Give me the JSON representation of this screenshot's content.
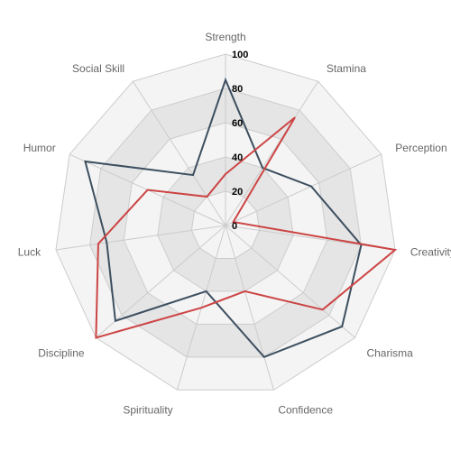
{
  "chart_data": {
    "type": "radar",
    "axes": [
      "Strength",
      "Stamina",
      "Perception",
      "Creativity",
      "Charisma",
      "Confidence",
      "Spirituality",
      "Discipline",
      "Luck",
      "Humor",
      "Social Skill"
    ],
    "r_ticks": [
      "0",
      "20",
      "40",
      "60",
      "80",
      "100"
    ],
    "r_range": [
      0,
      100
    ],
    "series": [
      {
        "values": [
          85,
          40,
          55,
          80,
          90,
          80,
          40,
          85,
          70,
          90,
          35
        ],
        "color": "#3d4f60"
      },
      {
        "values": [
          30,
          75,
          5,
          100,
          75,
          40,
          50,
          100,
          75,
          50,
          20
        ],
        "color": "#cc4444"
      }
    ],
    "grid_fill_colors": [
      "#f4f4f4",
      "#e5e5e5"
    ],
    "grid_stroke_color": "#cccccc",
    "legend": "none"
  }
}
